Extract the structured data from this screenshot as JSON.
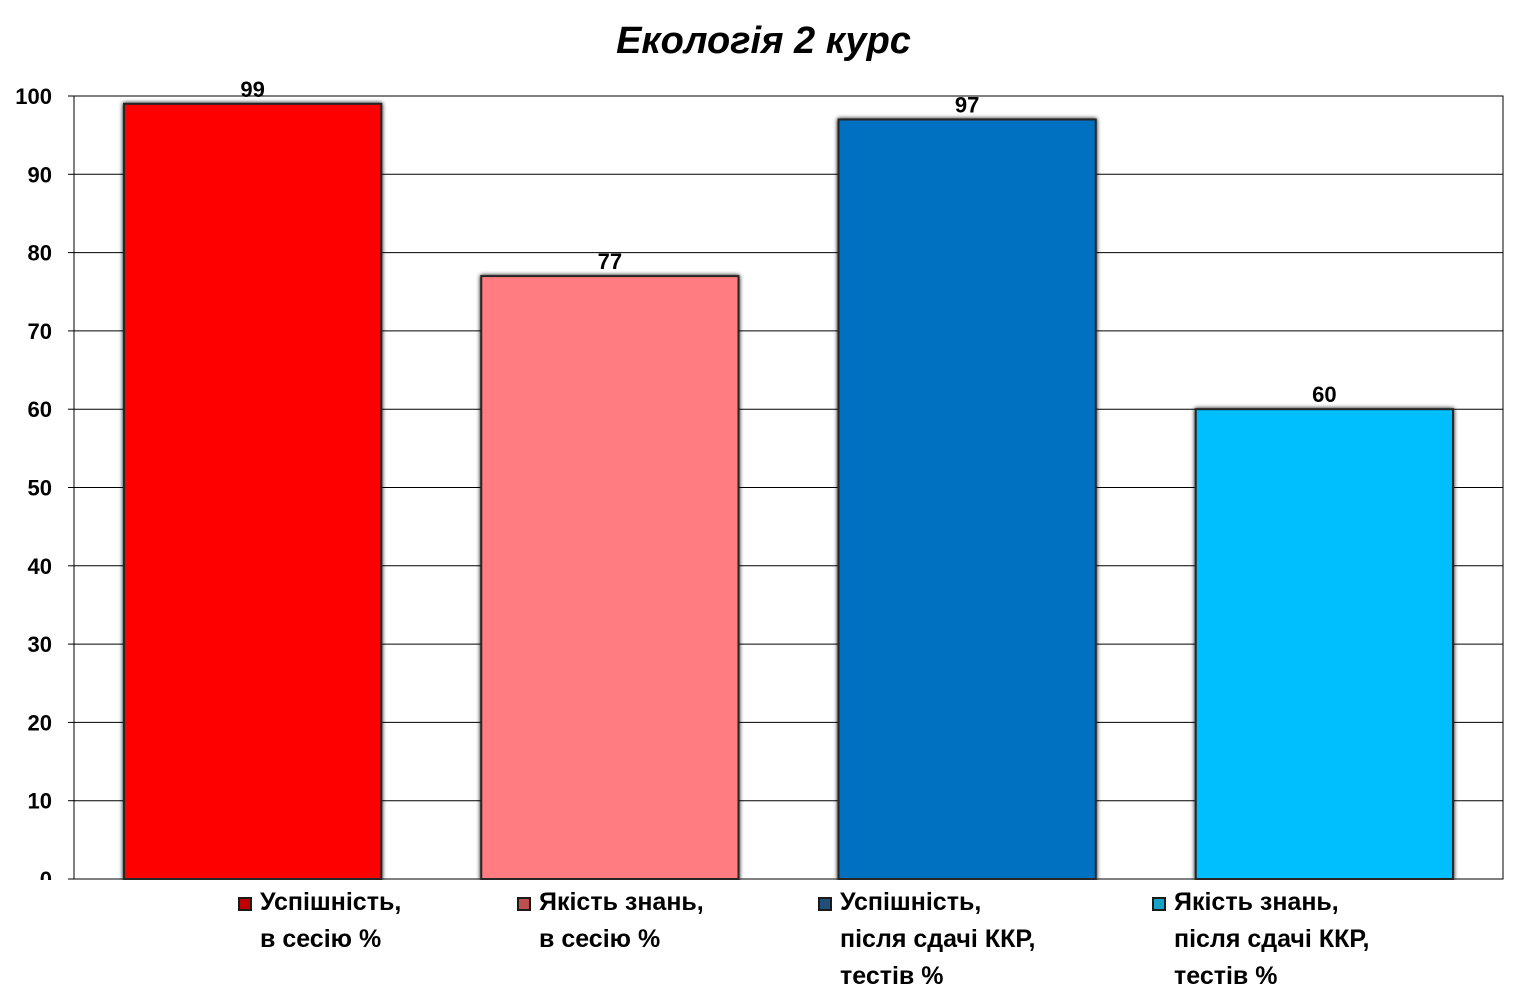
{
  "chart_data": {
    "type": "bar",
    "title": "Екологія 2 курс",
    "categories": [
      "Успішність,\nв сесію %",
      "Якість знань,\nв сесію %",
      "Успішність,\nпісля сдачі ККР,\nтестів %",
      "Якість знань,\nпісля сдачі ККР,\nтестів %"
    ],
    "values": [
      99,
      77,
      97,
      60
    ],
    "colors": [
      "#ff0000",
      "#ff7c80",
      "#0070c0",
      "#00bfff"
    ],
    "swatch_colors": [
      "#c00000",
      "#c0504d",
      "#1f4e79",
      "#17a2c8"
    ],
    "ylim": [
      0,
      100
    ],
    "yticks": [
      0,
      10,
      20,
      30,
      40,
      50,
      60,
      70,
      80,
      90,
      100
    ],
    "xlabel": "",
    "ylabel": "",
    "grid": true,
    "legend_position": "bottom"
  }
}
